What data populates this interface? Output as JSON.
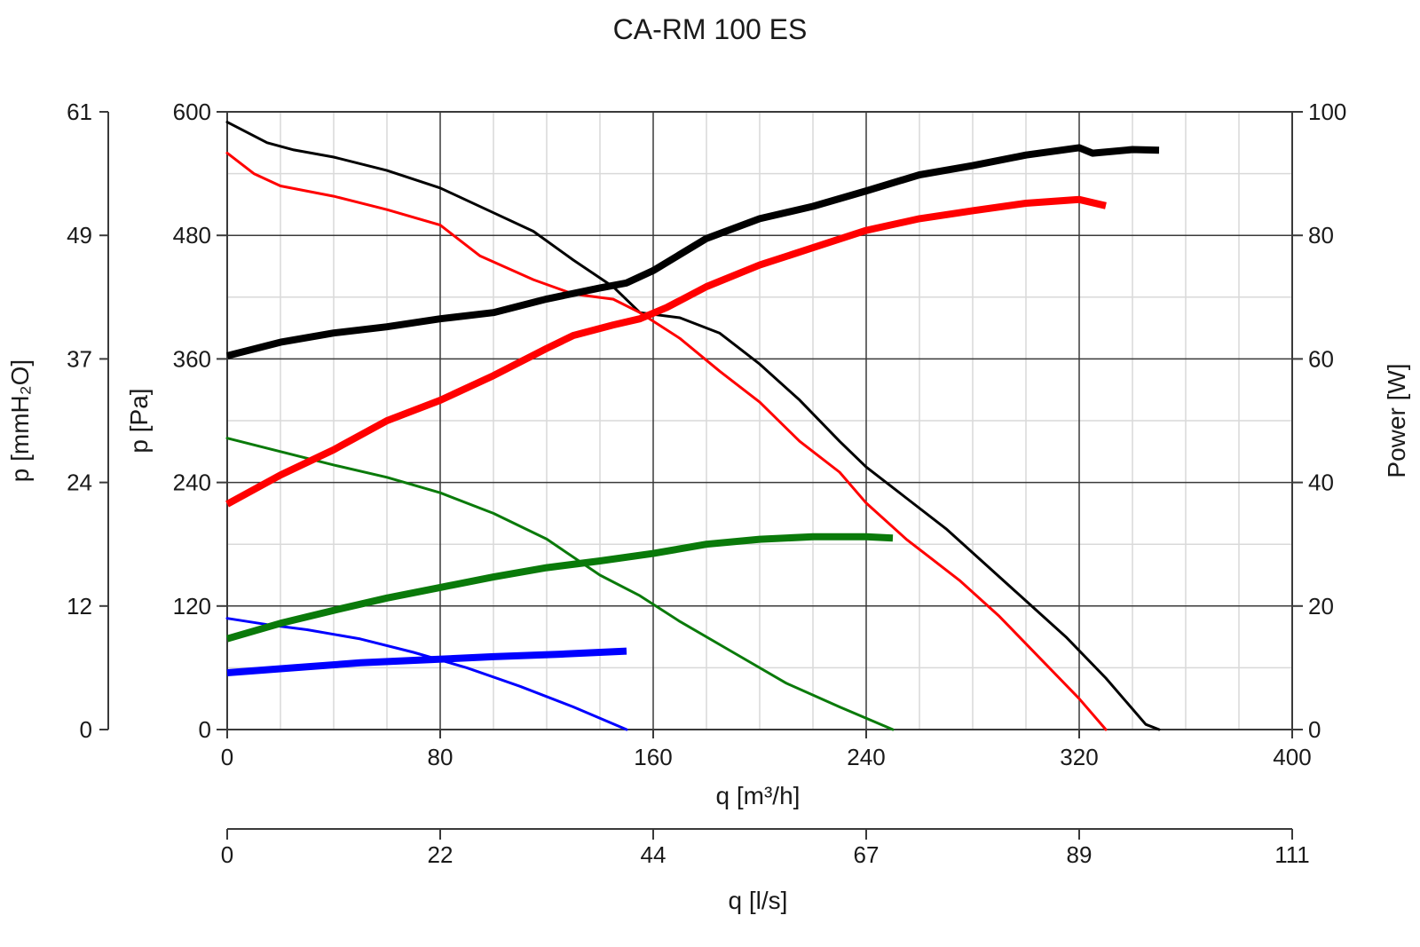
{
  "chart_data": {
    "type": "line",
    "title": "CA-RM 100 ES",
    "xlabel": "q [m³/h]",
    "x2label": "q [l/s]",
    "ylabel_left_outer": "p [mmH₂O]",
    "ylabel_left": "p [Pa]",
    "ylabel_right": "Power [W]",
    "xlim": [
      0,
      400
    ],
    "ylim": [
      0,
      600
    ],
    "y2lim": [
      0,
      100
    ],
    "x_ticks": [
      "0",
      "80",
      "160",
      "240",
      "320",
      "400"
    ],
    "x2_ticks": [
      "0",
      "22",
      "44",
      "67",
      "89",
      "111"
    ],
    "y_ticks": [
      "0",
      "120",
      "240",
      "360",
      "480",
      "600"
    ],
    "y_outer_ticks": [
      "0",
      "12",
      "24",
      "37",
      "49",
      "61"
    ],
    "y2_ticks": [
      "0",
      "20",
      "40",
      "60",
      "80",
      "100"
    ],
    "grid": true,
    "colors": {
      "black": "#000000",
      "red": "#ff0000",
      "green": "#0a7a0a",
      "blue": "#0000ff",
      "grid_major": "#3a3a3a",
      "grid_minor": "#d9d9d9"
    },
    "series": [
      {
        "kind": "pressure",
        "color": "black",
        "axis": "Pa",
        "x": [
          0,
          15,
          25,
          40,
          60,
          80,
          100,
          115,
          130,
          145,
          155,
          170,
          185,
          200,
          215,
          230,
          240,
          255,
          270,
          285,
          300,
          315,
          330,
          345,
          350
        ],
        "y": [
          590,
          570,
          563,
          556,
          543,
          526,
          502,
          484,
          456,
          430,
          405,
          400,
          385,
          355,
          320,
          280,
          255,
          225,
          195,
          160,
          125,
          90,
          50,
          5,
          0
        ]
      },
      {
        "kind": "pressure",
        "color": "red",
        "axis": "Pa",
        "x": [
          0,
          10,
          20,
          40,
          60,
          80,
          95,
          115,
          130,
          145,
          155,
          170,
          185,
          200,
          215,
          230,
          240,
          255,
          265,
          275,
          290,
          305,
          320,
          330
        ],
        "y": [
          560,
          540,
          528,
          518,
          505,
          490,
          460,
          437,
          423,
          418,
          405,
          380,
          348,
          318,
          280,
          250,
          220,
          185,
          165,
          145,
          110,
          70,
          30,
          0
        ]
      },
      {
        "kind": "pressure",
        "color": "green",
        "axis": "Pa",
        "x": [
          0,
          20,
          40,
          60,
          80,
          100,
          120,
          140,
          155,
          170,
          190,
          210,
          230,
          250
        ],
        "y": [
          283,
          270,
          257,
          245,
          230,
          210,
          185,
          150,
          130,
          105,
          75,
          45,
          22,
          0
        ]
      },
      {
        "kind": "pressure",
        "color": "blue",
        "axis": "Pa",
        "x": [
          0,
          15,
          30,
          50,
          70,
          90,
          110,
          130,
          150
        ],
        "y": [
          108,
          102,
          97,
          88,
          75,
          60,
          42,
          22,
          0
        ]
      },
      {
        "kind": "power",
        "color": "black",
        "axis": "W",
        "x": [
          0,
          20,
          40,
          60,
          80,
          100,
          120,
          140,
          150,
          160,
          180,
          200,
          220,
          240,
          260,
          280,
          300,
          320,
          325,
          340,
          350
        ],
        "y": [
          60.5,
          62.7,
          64.2,
          65.2,
          66.5,
          67.5,
          69.7,
          71.5,
          72.3,
          74.3,
          79.5,
          82.7,
          84.7,
          87.2,
          89.8,
          91.3,
          93.0,
          94.2,
          93.3,
          93.9,
          93.8
        ]
      },
      {
        "kind": "power",
        "color": "red",
        "axis": "W",
        "x": [
          0,
          20,
          40,
          60,
          80,
          100,
          120,
          130,
          145,
          155,
          165,
          180,
          200,
          220,
          240,
          260,
          280,
          300,
          320,
          330
        ],
        "y": [
          36.5,
          41.2,
          45.3,
          50.0,
          53.3,
          57.3,
          61.7,
          63.8,
          65.5,
          66.5,
          68.3,
          71.7,
          75.2,
          78.0,
          80.8,
          82.7,
          84.0,
          85.2,
          85.8,
          84.8
        ]
      },
      {
        "kind": "power",
        "color": "green",
        "axis": "W",
        "x": [
          0,
          20,
          40,
          60,
          80,
          100,
          120,
          140,
          160,
          180,
          200,
          220,
          240,
          250
        ],
        "y": [
          14.7,
          17.2,
          19.3,
          21.3,
          23.0,
          24.7,
          26.2,
          27.3,
          28.5,
          30.0,
          30.8,
          31.2,
          31.2,
          31.0
        ]
      },
      {
        "kind": "power",
        "color": "blue",
        "axis": "W",
        "x": [
          0,
          25,
          50,
          75,
          100,
          125,
          150
        ],
        "y": [
          9.2,
          10.0,
          10.8,
          11.3,
          11.8,
          12.2,
          12.7
        ]
      }
    ]
  }
}
